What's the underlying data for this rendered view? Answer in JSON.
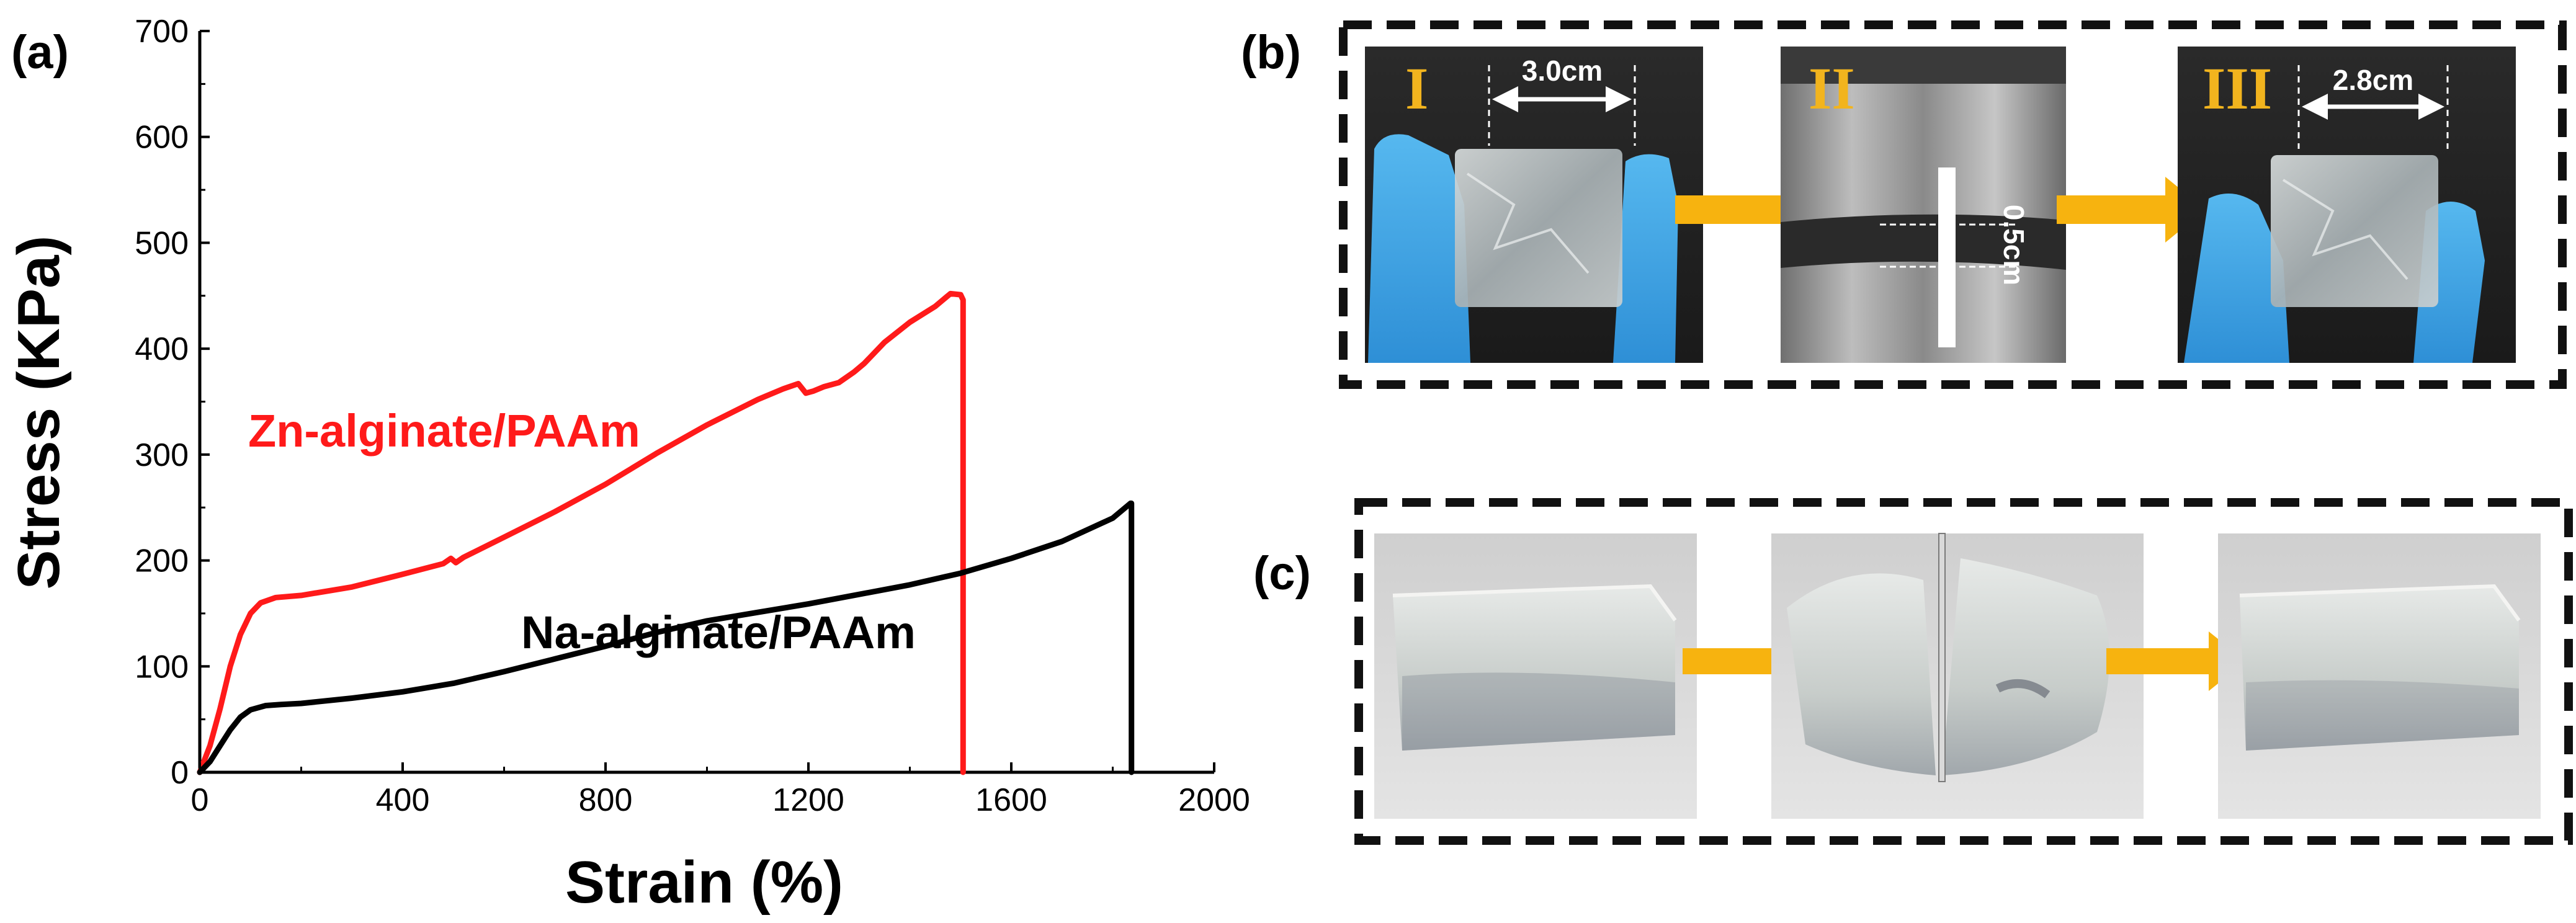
{
  "panels": {
    "a": "(a)",
    "b": "(b)",
    "c": "(c)"
  },
  "chart_data": {
    "type": "line",
    "title": "",
    "xlabel": "Strain (%)",
    "ylabel": "Stress (KPa)",
    "xlim": [
      0,
      2000
    ],
    "ylim": [
      0,
      700
    ],
    "xticks": [
      0,
      400,
      800,
      1200,
      1600,
      2000
    ],
    "yticks": [
      0,
      100,
      200,
      300,
      400,
      500,
      600,
      700
    ],
    "series": [
      {
        "name": "Zn-alginate/PAAm",
        "color": "#ff1a1a",
        "x": [
          0,
          20,
          40,
          60,
          80,
          100,
          120,
          150,
          200,
          300,
          400,
          480,
          495,
          505,
          520,
          600,
          700,
          800,
          900,
          1000,
          1100,
          1150,
          1180,
          1195,
          1210,
          1230,
          1260,
          1290,
          1310,
          1350,
          1400,
          1450,
          1480,
          1500,
          1505,
          1505
        ],
        "y": [
          0,
          25,
          60,
          100,
          130,
          150,
          160,
          165,
          167,
          175,
          187,
          197,
          202,
          198,
          203,
          222,
          246,
          272,
          301,
          328,
          352,
          362,
          367,
          358,
          360,
          364,
          368,
          378,
          386,
          406,
          425,
          440,
          452,
          451,
          446,
          0
        ]
      },
      {
        "name": "Na-alginate/PAAm",
        "color": "#000000",
        "x": [
          0,
          20,
          40,
          60,
          80,
          100,
          130,
          160,
          200,
          300,
          400,
          500,
          600,
          700,
          800,
          900,
          1000,
          1100,
          1200,
          1300,
          1400,
          1500,
          1600,
          1700,
          1800,
          1835,
          1837,
          1837
        ],
        "y": [
          0,
          10,
          25,
          40,
          52,
          59,
          63,
          64,
          65,
          70,
          76,
          84,
          95,
          107,
          119,
          132,
          143,
          151,
          159,
          168,
          177,
          188,
          202,
          218,
          240,
          254,
          254,
          0
        ]
      }
    ],
    "legend": "inline labels"
  },
  "photos_b": {
    "stages": [
      "I",
      "II",
      "III"
    ],
    "dims": [
      "3.0cm",
      "0.5cm",
      "2.8cm"
    ]
  },
  "colors": {
    "arrow": "#f7b30f",
    "glove": "#3ea8e6",
    "zn_line": "#ff1a1a",
    "na_line": "#000000"
  }
}
